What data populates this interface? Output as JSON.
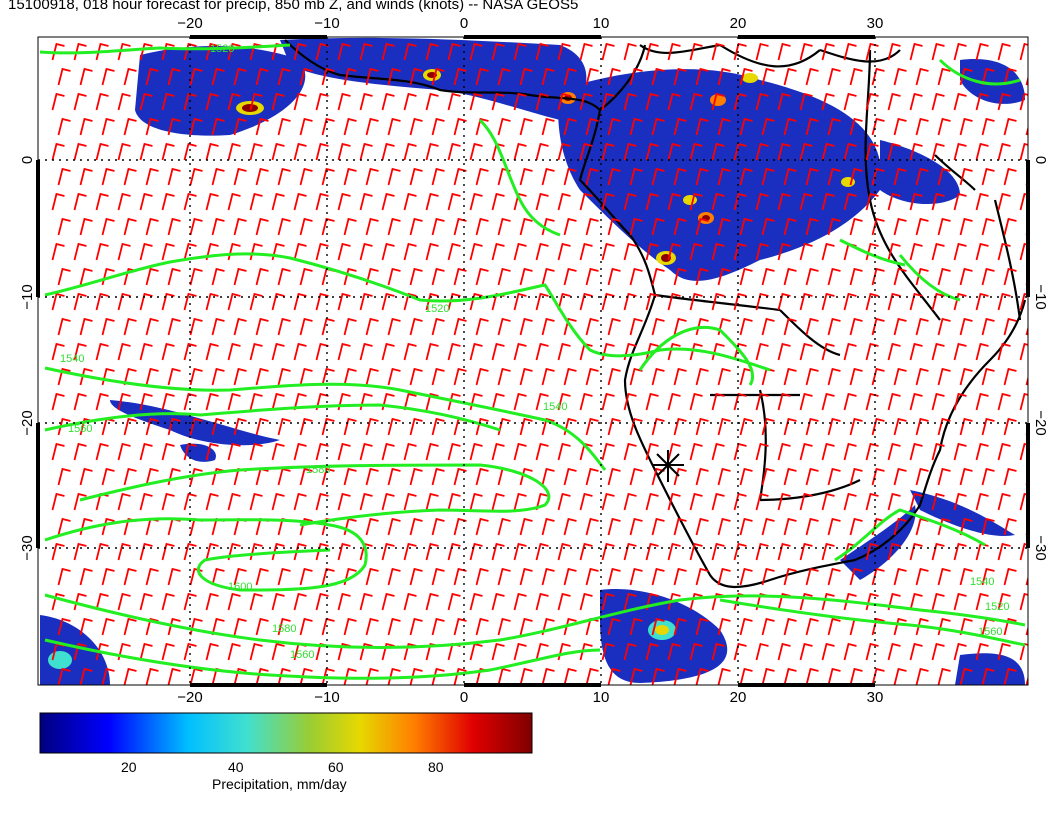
{
  "title": "15100918, 018 hour forecast for precip, 850 mb Z, and winds (knots) -- NASA GEOS5",
  "map": {
    "lon_ticks": [
      "−20",
      "−10",
      "0",
      "10",
      "20",
      "30"
    ],
    "lat_ticks": [
      "0",
      "−10",
      "−20",
      "−30"
    ],
    "contour_labels": [
      "1520",
      "1540",
      "1560",
      "1580",
      "1600"
    ],
    "colors": {
      "contour": "#22ee22",
      "wind_barb": "#ff0000",
      "coastline": "#000000",
      "precip_low": "#1a2fbf",
      "precip_high": "#8b0000"
    }
  },
  "colorbar": {
    "label": "Precipitation, mm/day",
    "ticks": [
      "20",
      "40",
      "60",
      "80"
    ],
    "range": [
      0,
      100
    ],
    "colormap": [
      "#00007f",
      "#0000ff",
      "#00bfff",
      "#40e0d0",
      "#9acd32",
      "#e6d800",
      "#ff7f00",
      "#e00000",
      "#7f0000"
    ]
  }
}
